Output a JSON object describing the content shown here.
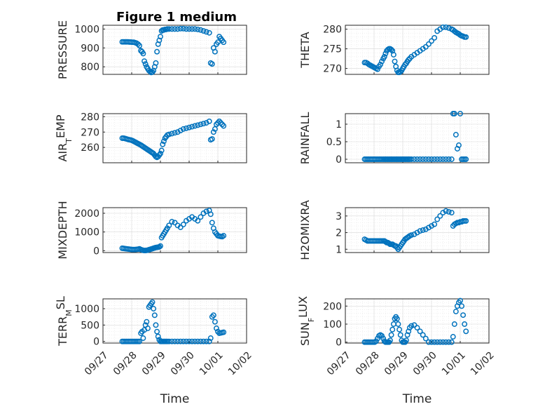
{
  "figure_title": "Figure 1 medium",
  "colors": {
    "marker": "#0072BD",
    "axis": "#262626",
    "grid": "#d9d9d9"
  },
  "chart_data": [
    {
      "id": "pressure",
      "type": "scatter",
      "title": "Figure 1 medium",
      "ylabel": "PRESSURE",
      "ylabel_sub": "",
      "ylabel_rest": "",
      "xlim": [
        0,
        5
      ],
      "ylim": [
        760,
        1020
      ],
      "yticks": [
        800,
        900,
        1000
      ],
      "ytick_labels": [
        "800",
        "900",
        "1000"
      ],
      "x": [
        0.67,
        0.72,
        0.77,
        0.82,
        0.87,
        0.92,
        0.97,
        1.02,
        1.07,
        1.12,
        1.17,
        1.22,
        1.27,
        1.32,
        1.36,
        1.4,
        1.44,
        1.48,
        1.52,
        1.56,
        1.6,
        1.64,
        1.68,
        1.72,
        1.76,
        1.8,
        1.84,
        1.88,
        1.92,
        1.96,
        2.0,
        2.04,
        2.08,
        2.12,
        2.16,
        2.2,
        2.24,
        2.3,
        2.4,
        2.5,
        2.6,
        2.7,
        2.8,
        2.9,
        3.0,
        3.1,
        3.2,
        3.3,
        3.4,
        3.5,
        3.6,
        3.7,
        3.75,
        3.8,
        3.85,
        3.9,
        3.95,
        4.0,
        4.05,
        4.1,
        4.15,
        4.2
      ],
      "y": [
        932,
        932,
        932,
        932,
        932,
        931,
        931,
        930,
        930,
        928,
        925,
        920,
        912,
        885,
        880,
        870,
        830,
        815,
        800,
        790,
        780,
        775,
        770,
        772,
        780,
        800,
        820,
        880,
        920,
        940,
        960,
        990,
        995,
        995,
        998,
        998,
        1000,
        1000,
        1000,
        1000,
        1000,
        1002,
        1002,
        1000,
        1000,
        1000,
        1000,
        998,
        995,
        990,
        985,
        980,
        820,
        815,
        900,
        880,
        920,
        930,
        960,
        950,
        940,
        930
      ]
    },
    {
      "id": "theta",
      "type": "scatter",
      "ylabel": "THETA",
      "ylabel_sub": "",
      "ylabel_rest": "",
      "xlim": [
        0,
        5
      ],
      "ylim": [
        268.5,
        281
      ],
      "yticks": [
        270,
        275,
        280
      ],
      "ytick_labels": [
        "270",
        "275",
        "280"
      ],
      "x": [
        0.67,
        0.72,
        0.77,
        0.82,
        0.87,
        0.92,
        0.97,
        1.02,
        1.07,
        1.12,
        1.17,
        1.22,
        1.27,
        1.32,
        1.36,
        1.4,
        1.44,
        1.48,
        1.52,
        1.56,
        1.6,
        1.64,
        1.68,
        1.72,
        1.76,
        1.8,
        1.84,
        1.88,
        1.92,
        1.96,
        2.0,
        2.04,
        2.08,
        2.12,
        2.16,
        2.2,
        2.24,
        2.3,
        2.4,
        2.5,
        2.6,
        2.7,
        2.8,
        2.9,
        3.0,
        3.1,
        3.2,
        3.3,
        3.4,
        3.5,
        3.6,
        3.7,
        3.75,
        3.8,
        3.85,
        3.9,
        3.95,
        4.0,
        4.05,
        4.1,
        4.15,
        4.2
      ],
      "y": [
        271.5,
        271.5,
        271.3,
        271.0,
        270.8,
        270.6,
        270.4,
        270.2,
        270.0,
        269.8,
        270.5,
        271.0,
        271.8,
        272.5,
        273.0,
        273.8,
        274.5,
        274.8,
        275.0,
        275.0,
        274.8,
        274.5,
        273.5,
        271.8,
        270.5,
        269.5,
        269.0,
        269.0,
        269.2,
        269.5,
        270.0,
        270.5,
        271.0,
        271.3,
        271.8,
        272.2,
        272.5,
        273.0,
        273.5,
        274.0,
        274.5,
        275.0,
        275.5,
        276.2,
        277.0,
        277.8,
        279.5,
        280.0,
        280.5,
        280.5,
        280.3,
        280.0,
        279.8,
        279.5,
        279.2,
        279.0,
        278.8,
        278.5,
        278.3,
        278.2,
        278.0,
        278.0
      ]
    },
    {
      "id": "air_temp",
      "type": "scatter",
      "ylabel": "AIR",
      "ylabel_sub": "T",
      "ylabel_rest": "EMP",
      "xlim": [
        0,
        5
      ],
      "ylim": [
        250,
        282
      ],
      "yticks": [
        260,
        270,
        280
      ],
      "ytick_labels": [
        "260",
        "270",
        "280"
      ],
      "x": [
        0.67,
        0.72,
        0.77,
        0.82,
        0.87,
        0.92,
        0.97,
        1.02,
        1.07,
        1.12,
        1.17,
        1.22,
        1.27,
        1.32,
        1.36,
        1.4,
        1.44,
        1.48,
        1.52,
        1.56,
        1.6,
        1.64,
        1.68,
        1.72,
        1.76,
        1.8,
        1.84,
        1.88,
        1.92,
        1.96,
        2.0,
        2.04,
        2.08,
        2.12,
        2.16,
        2.2,
        2.24,
        2.3,
        2.4,
        2.5,
        2.6,
        2.7,
        2.8,
        2.9,
        3.0,
        3.1,
        3.2,
        3.3,
        3.4,
        3.5,
        3.6,
        3.7,
        3.75,
        3.8,
        3.85,
        3.9,
        3.95,
        4.0,
        4.05,
        4.1,
        4.15,
        4.2
      ],
      "y": [
        266,
        266,
        265.8,
        265.5,
        265.2,
        265,
        264.8,
        264.5,
        264,
        263.5,
        263,
        262.5,
        262,
        261.5,
        261,
        260.5,
        260,
        259.5,
        259,
        258.5,
        258,
        257.5,
        257,
        256.5,
        256,
        255,
        254,
        253.5,
        254,
        255,
        256,
        258,
        262,
        264,
        266,
        267,
        268,
        268.5,
        269,
        269.5,
        270,
        271,
        272,
        272.5,
        273,
        273.5,
        274,
        274.5,
        275,
        275.5,
        276,
        277,
        265,
        265.5,
        270,
        272,
        275,
        276,
        277,
        276,
        275,
        274
      ]
    },
    {
      "id": "rainfall",
      "type": "scatter",
      "ylabel": "RAINFALL",
      "ylabel_sub": "",
      "ylabel_rest": "",
      "xlim": [
        0,
        5
      ],
      "ylim": [
        -0.1,
        1.3
      ],
      "yticks": [
        0,
        0.5,
        1
      ],
      "ytick_labels": [
        "0",
        "0.5",
        "1"
      ],
      "x": [
        0.67,
        0.72,
        0.77,
        0.82,
        0.87,
        0.92,
        0.97,
        1.02,
        1.07,
        1.12,
        1.17,
        1.22,
        1.27,
        1.32,
        1.36,
        1.4,
        1.44,
        1.48,
        1.52,
        1.56,
        1.6,
        1.64,
        1.68,
        1.72,
        1.76,
        1.8,
        1.84,
        1.88,
        1.92,
        1.96,
        2.0,
        2.04,
        2.08,
        2.12,
        2.16,
        2.2,
        2.24,
        2.3,
        2.4,
        2.5,
        2.6,
        2.7,
        2.8,
        2.9,
        3.0,
        3.1,
        3.2,
        3.3,
        3.4,
        3.5,
        3.6,
        3.7,
        3.75,
        3.8,
        3.85,
        3.9,
        3.95,
        4.0,
        4.05,
        4.1,
        4.15,
        4.2
      ],
      "y": [
        0,
        0,
        0,
        0,
        0,
        0,
        0,
        0,
        0,
        0,
        0,
        0,
        0,
        0,
        0,
        0,
        0,
        0,
        0,
        0,
        0,
        0,
        0,
        0,
        0,
        0,
        0,
        0,
        0,
        0,
        0,
        0,
        0,
        0,
        0,
        0,
        0,
        0,
        0,
        0,
        0,
        0,
        0,
        0,
        0,
        0,
        0,
        0,
        0,
        0,
        0,
        0,
        1.3,
        1.3,
        0.7,
        0.3,
        0.4,
        1.3,
        0,
        0,
        0,
        0
      ]
    },
    {
      "id": "mixdepth",
      "type": "scatter",
      "ylabel": "MIXDEPTH",
      "ylabel_sub": "",
      "ylabel_rest": "",
      "xlim": [
        0,
        5
      ],
      "ylim": [
        -100,
        2300
      ],
      "yticks": [
        0,
        1000,
        2000
      ],
      "ytick_labels": [
        "0",
        "1000",
        "2000"
      ],
      "x": [
        0.67,
        0.72,
        0.77,
        0.82,
        0.87,
        0.92,
        0.97,
        1.02,
        1.07,
        1.12,
        1.17,
        1.22,
        1.27,
        1.32,
        1.36,
        1.4,
        1.44,
        1.48,
        1.52,
        1.56,
        1.6,
        1.64,
        1.68,
        1.72,
        1.76,
        1.8,
        1.84,
        1.88,
        1.92,
        1.96,
        2.0,
        2.04,
        2.08,
        2.12,
        2.16,
        2.2,
        2.24,
        2.3,
        2.4,
        2.5,
        2.6,
        2.7,
        2.8,
        2.9,
        3.0,
        3.1,
        3.2,
        3.3,
        3.4,
        3.5,
        3.6,
        3.7,
        3.75,
        3.8,
        3.85,
        3.9,
        3.95,
        4.0,
        4.05,
        4.1,
        4.15,
        4.2
      ],
      "y": [
        130,
        120,
        110,
        100,
        90,
        80,
        70,
        60,
        60,
        60,
        70,
        80,
        100,
        60,
        40,
        20,
        10,
        10,
        20,
        30,
        50,
        70,
        90,
        110,
        130,
        150,
        170,
        180,
        190,
        200,
        250,
        700,
        800,
        900,
        1000,
        1100,
        1200,
        1350,
        1550,
        1500,
        1350,
        1250,
        1400,
        1600,
        1700,
        1800,
        1700,
        1600,
        1800,
        2000,
        2100,
        2150,
        1950,
        1500,
        1200,
        1000,
        900,
        800,
        780,
        760,
        750,
        800
      ]
    },
    {
      "id": "h2omixra",
      "type": "scatter",
      "ylabel": "H2OMIXRA",
      "ylabel_sub": "",
      "ylabel_rest": "",
      "xlim": [
        0,
        5
      ],
      "ylim": [
        0.8,
        3.5
      ],
      "yticks": [
        1,
        2,
        3
      ],
      "ytick_labels": [
        "1",
        "2",
        "3"
      ],
      "x": [
        0.67,
        0.72,
        0.77,
        0.82,
        0.87,
        0.92,
        0.97,
        1.02,
        1.07,
        1.12,
        1.17,
        1.22,
        1.27,
        1.32,
        1.36,
        1.4,
        1.44,
        1.48,
        1.52,
        1.56,
        1.6,
        1.64,
        1.68,
        1.72,
        1.76,
        1.8,
        1.84,
        1.88,
        1.92,
        1.96,
        2.0,
        2.04,
        2.08,
        2.12,
        2.16,
        2.2,
        2.24,
        2.3,
        2.4,
        2.5,
        2.6,
        2.7,
        2.8,
        2.9,
        3.0,
        3.1,
        3.2,
        3.3,
        3.4,
        3.5,
        3.6,
        3.7,
        3.75,
        3.8,
        3.85,
        3.9,
        3.95,
        4.0,
        4.05,
        4.1,
        4.15,
        4.2
      ],
      "y": [
        1.6,
        1.55,
        1.5,
        1.5,
        1.5,
        1.5,
        1.5,
        1.5,
        1.5,
        1.5,
        1.5,
        1.5,
        1.5,
        1.5,
        1.5,
        1.45,
        1.4,
        1.4,
        1.35,
        1.3,
        1.3,
        1.3,
        1.25,
        1.2,
        1.2,
        1.1,
        1.0,
        1.1,
        1.2,
        1.3,
        1.4,
        1.5,
        1.6,
        1.65,
        1.7,
        1.75,
        1.8,
        1.85,
        1.9,
        2.0,
        2.1,
        2.15,
        2.2,
        2.3,
        2.4,
        2.5,
        2.8,
        3.0,
        3.2,
        3.3,
        3.25,
        3.2,
        2.4,
        2.5,
        2.55,
        2.6,
        2.6,
        2.65,
        2.65,
        2.7,
        2.7,
        2.7
      ]
    },
    {
      "id": "terr_msl",
      "type": "scatter",
      "ylabel": "TERR",
      "ylabel_sub": "M",
      "ylabel_rest": "SL",
      "xlim": [
        0,
        5
      ],
      "ylim": [
        -50,
        1300
      ],
      "yticks": [
        0,
        500,
        1000
      ],
      "ytick_labels": [
        "0",
        "500",
        "1000"
      ],
      "xticks": [
        0,
        1,
        2,
        3,
        4,
        5
      ],
      "xtick_labels": [
        "09/27",
        "09/28",
        "09/29",
        "09/30",
        "10/01",
        "10/02"
      ],
      "xlabel": "Time",
      "x": [
        0.67,
        0.72,
        0.77,
        0.82,
        0.87,
        0.92,
        0.97,
        1.02,
        1.07,
        1.12,
        1.17,
        1.22,
        1.27,
        1.32,
        1.36,
        1.4,
        1.44,
        1.48,
        1.52,
        1.56,
        1.6,
        1.64,
        1.68,
        1.72,
        1.76,
        1.8,
        1.84,
        1.88,
        1.92,
        1.96,
        2.0,
        2.04,
        2.08,
        2.12,
        2.16,
        2.2,
        2.24,
        2.3,
        2.4,
        2.5,
        2.6,
        2.7,
        2.8,
        2.9,
        3.0,
        3.1,
        3.2,
        3.3,
        3.4,
        3.5,
        3.6,
        3.7,
        3.75,
        3.8,
        3.85,
        3.9,
        3.95,
        4.0,
        4.05,
        4.1,
        4.15,
        4.2
      ],
      "y": [
        0,
        0,
        0,
        0,
        0,
        0,
        0,
        0,
        0,
        0,
        0,
        0,
        0,
        250,
        300,
        100,
        350,
        500,
        600,
        400,
        1050,
        1100,
        1150,
        1200,
        1000,
        800,
        500,
        300,
        150,
        50,
        0,
        0,
        0,
        0,
        0,
        0,
        0,
        0,
        0,
        0,
        0,
        0,
        0,
        0,
        0,
        0,
        0,
        0,
        0,
        0,
        0,
        0,
        100,
        750,
        800,
        600,
        400,
        300,
        250,
        260,
        270,
        280
      ]
    },
    {
      "id": "sun_flux",
      "type": "scatter",
      "ylabel": "SUN",
      "ylabel_sub": "F",
      "ylabel_rest": "LUX",
      "xlim": [
        0,
        5
      ],
      "ylim": [
        -5,
        240
      ],
      "yticks": [
        0,
        100,
        200
      ],
      "ytick_labels": [
        "0",
        "100",
        "200"
      ],
      "xticks": [
        0,
        1,
        2,
        3,
        4,
        5
      ],
      "xtick_labels": [
        "09/27",
        "09/28",
        "09/29",
        "09/30",
        "10/01",
        "10/02"
      ],
      "xlabel": "Time",
      "x": [
        0.67,
        0.72,
        0.77,
        0.82,
        0.87,
        0.92,
        0.97,
        1.02,
        1.07,
        1.12,
        1.17,
        1.22,
        1.27,
        1.32,
        1.36,
        1.4,
        1.44,
        1.48,
        1.52,
        1.56,
        1.6,
        1.64,
        1.68,
        1.72,
        1.76,
        1.8,
        1.84,
        1.88,
        1.92,
        1.96,
        2.0,
        2.04,
        2.08,
        2.12,
        2.16,
        2.2,
        2.24,
        2.3,
        2.4,
        2.5,
        2.6,
        2.7,
        2.8,
        2.9,
        3.0,
        3.1,
        3.2,
        3.3,
        3.4,
        3.5,
        3.6,
        3.7,
        3.75,
        3.8,
        3.85,
        3.9,
        3.95,
        4.0,
        4.05,
        4.1,
        4.15,
        4.2
      ],
      "y": [
        0,
        0,
        0,
        0,
        0,
        0,
        0,
        0,
        5,
        20,
        35,
        40,
        35,
        20,
        5,
        0,
        0,
        0,
        0,
        10,
        40,
        70,
        100,
        130,
        140,
        130,
        100,
        70,
        40,
        10,
        0,
        0,
        0,
        10,
        40,
        60,
        80,
        90,
        95,
        80,
        60,
        40,
        20,
        0,
        0,
        0,
        0,
        0,
        0,
        0,
        0,
        0,
        30,
        100,
        170,
        200,
        220,
        230,
        200,
        150,
        100,
        60
      ]
    }
  ]
}
